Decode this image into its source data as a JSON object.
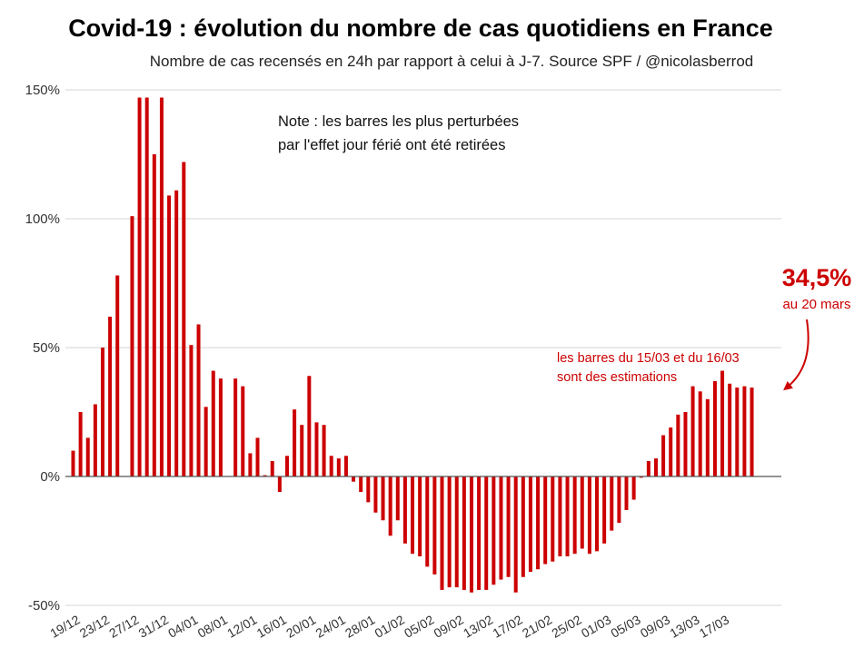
{
  "chart_data": {
    "type": "bar",
    "title": "Covid-19 : évolution du nombre de cas quotidiens en France",
    "subtitle": "Nombre de cas recensés en 24h par rapport à celui à J-7. Source SPF / @nicolasberrod",
    "y_unit": "%",
    "ylim": [
      -50,
      150
    ],
    "yticks": [
      {
        "value": 150,
        "label": "150%"
      },
      {
        "value": 100,
        "label": "100%"
      },
      {
        "value": 50,
        "label": "50%"
      },
      {
        "value": 0,
        "label": "0%"
      },
      {
        "value": -50,
        "label": "-50%"
      }
    ],
    "grid": true,
    "x_tick_labels": [
      "19/12",
      "23/12",
      "27/12",
      "31/12",
      "04/01",
      "08/01",
      "12/01",
      "16/01",
      "20/01",
      "24/01",
      "28/01",
      "01/02",
      "05/02",
      "09/02",
      "13/02",
      "17/02",
      "21/02",
      "25/02",
      "01/03",
      "05/03",
      "09/03",
      "13/03",
      "17/03"
    ],
    "x_tick_every": 4,
    "values": [
      10,
      25,
      15,
      28,
      50,
      62,
      78,
      null,
      101,
      147,
      147,
      125,
      147,
      109,
      111,
      122,
      51,
      59,
      27,
      41,
      38,
      null,
      38,
      35,
      9,
      15,
      0.5,
      6,
      -6,
      8,
      26,
      20,
      39,
      21,
      20,
      8,
      7,
      8,
      -2,
      -6,
      -10,
      -14,
      -17,
      -23,
      -17,
      -26,
      -30,
      -31,
      -35,
      -38,
      -44,
      -43,
      -43,
      -44,
      -45,
      -44,
      -44,
      -42,
      -40,
      -39,
      -45,
      -39,
      -37,
      -36,
      -34,
      -33,
      -31,
      -31,
      -30,
      -28,
      -30,
      -29,
      -26,
      -21,
      -18,
      -13,
      -9,
      -0.5,
      6,
      7,
      16,
      19,
      24,
      25,
      35,
      33,
      30,
      37,
      41,
      36,
      34.5,
      35,
      34.5
    ],
    "annotations": {
      "note_lines": [
        "Note : les barres les plus perturbées",
        "par l'effet jour férié ont été retirées"
      ],
      "estimate_lines": [
        "les barres du 15/03 et du 16/03",
        "sont des estimations"
      ],
      "highlight_value": "34,5%",
      "highlight_date": "au 20 mars"
    },
    "colors": {
      "bar": "#cc0000",
      "annotation": "#cc0000"
    }
  }
}
